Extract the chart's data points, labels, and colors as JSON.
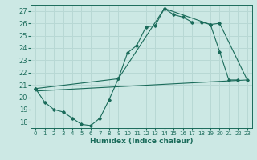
{
  "bg_color": "#cce8e4",
  "line_color": "#1a6b5a",
  "grid_color": "#b8d8d4",
  "xlabel": "Humidex (Indice chaleur)",
  "xlim": [
    -0.5,
    23.5
  ],
  "ylim": [
    17.5,
    27.5
  ],
  "yticks": [
    18,
    19,
    20,
    21,
    22,
    23,
    24,
    25,
    26,
    27
  ],
  "xticks": [
    0,
    1,
    2,
    3,
    4,
    5,
    6,
    7,
    8,
    9,
    10,
    11,
    12,
    13,
    14,
    15,
    16,
    17,
    18,
    19,
    20,
    21,
    22,
    23
  ],
  "line1_x": [
    0,
    1,
    2,
    3,
    4,
    5,
    6,
    7,
    8,
    9,
    10,
    11,
    12,
    13,
    14,
    15,
    16,
    17,
    18,
    19,
    20,
    21,
    22
  ],
  "line1_y": [
    20.7,
    19.6,
    19.0,
    18.8,
    18.3,
    17.8,
    17.7,
    18.3,
    19.8,
    21.5,
    23.6,
    24.2,
    25.7,
    25.8,
    27.2,
    26.7,
    26.5,
    26.1,
    26.1,
    25.9,
    23.7,
    21.4,
    21.4
  ],
  "line2_x": [
    0,
    23
  ],
  "line2_y": [
    20.5,
    21.4
  ],
  "line3_x": [
    0,
    9,
    14,
    19,
    20,
    23
  ],
  "line3_y": [
    20.7,
    21.5,
    27.2,
    25.9,
    26.0,
    21.4
  ]
}
